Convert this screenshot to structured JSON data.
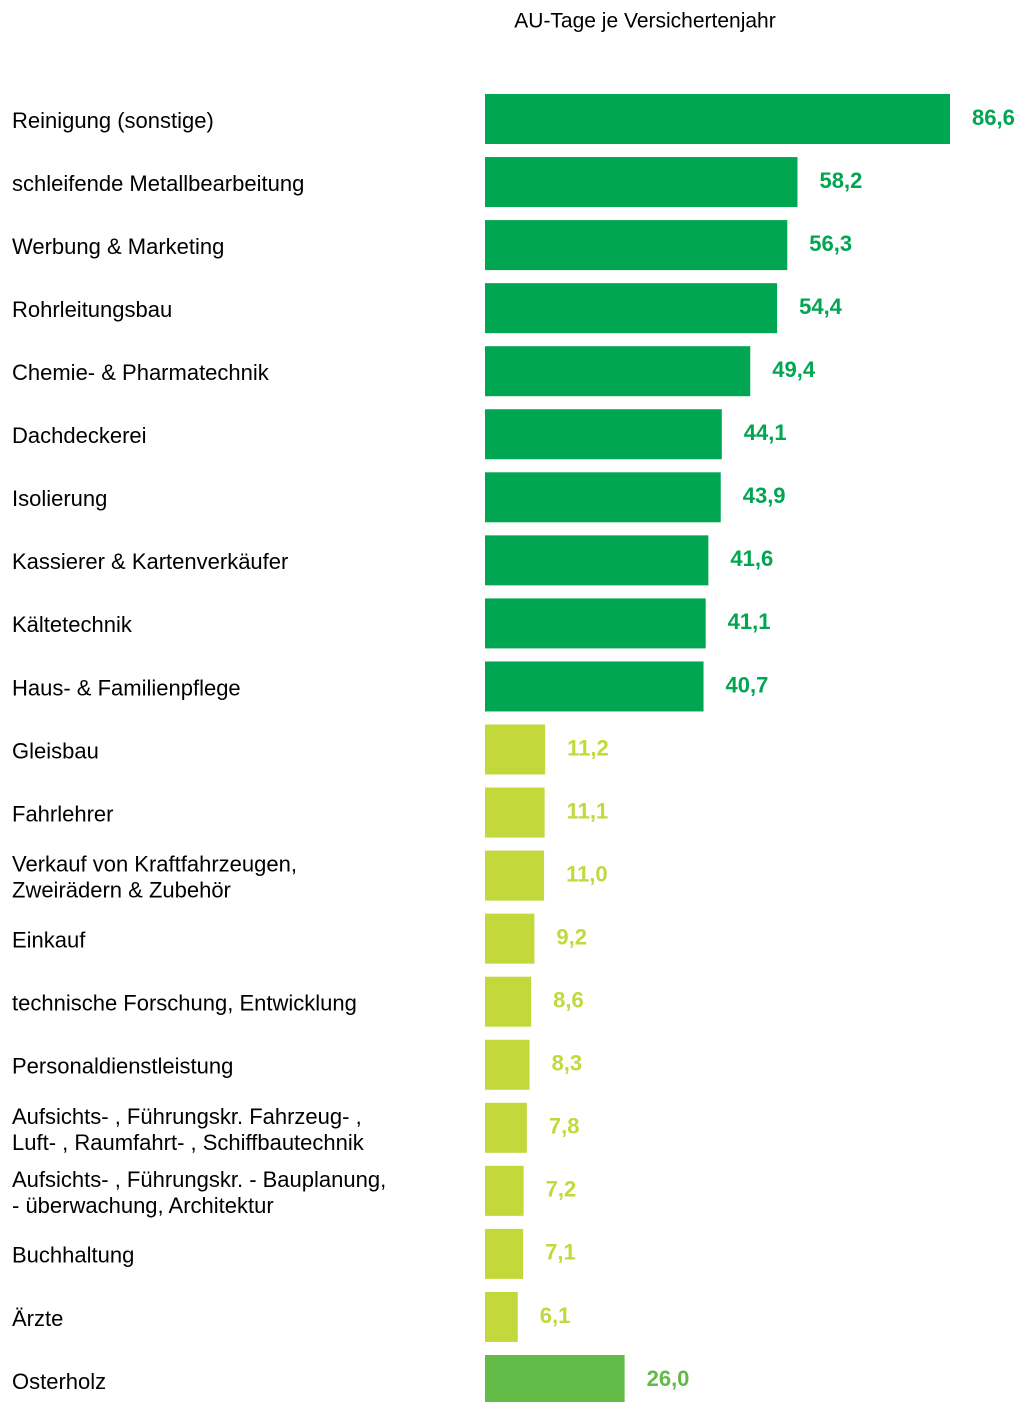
{
  "chart_data": {
    "type": "bar",
    "orientation": "horizontal",
    "title": "AU-Tage je Versichertenjahr",
    "categories": [
      "Reinigung (sonstige)",
      "schleifende Metallbearbeitung",
      "Werbung & Marketing",
      "Rohrleitungsbau",
      "Chemie- & Pharmatechnik",
      "Dachdeckerei",
      "Isolierung",
      "Kassierer & Kartenverkäufer",
      "Kältetechnik",
      "Haus- & Familienpflege",
      "Gleisbau",
      "Fahrlehrer",
      "Verkauf von Kraftfahrzeugen,\nZweirädern & Zubehör",
      "Einkauf",
      "technische Forschung, Entwicklung",
      "Personaldienstleistung",
      "Aufsichts- , Führungskr. Fahrzeug- ,\nLuft- , Raumfahrt- , Schiffbautechnik",
      "Aufsichts- , Führungskr. - Bauplanung,\n- überwachung, Architektur",
      "Buchhaltung",
      "Ärzte",
      "Osterholz"
    ],
    "values": [
      86.6,
      58.2,
      56.3,
      54.4,
      49.4,
      44.1,
      43.9,
      41.6,
      41.1,
      40.7,
      11.2,
      11.1,
      11.0,
      9.2,
      8.6,
      8.3,
      7.8,
      7.2,
      7.1,
      6.1,
      26.0
    ],
    "value_labels": [
      "86,6",
      "58,2",
      "56,3",
      "54,4",
      "49,4",
      "44,1",
      "43,9",
      "41,6",
      "41,1",
      "40,7",
      "11,2",
      "11,1",
      "11,0",
      "9,2",
      "8,6",
      "8,3",
      "7,8",
      "7,2",
      "7,1",
      "6,1",
      "26,0"
    ],
    "colors": [
      "#00a651",
      "#00a651",
      "#00a651",
      "#00a651",
      "#00a651",
      "#00a651",
      "#00a651",
      "#00a651",
      "#00a651",
      "#00a651",
      "#c2d83b",
      "#c2d83b",
      "#c2d83b",
      "#c2d83b",
      "#c2d83b",
      "#c2d83b",
      "#c2d83b",
      "#c2d83b",
      "#c2d83b",
      "#c2d83b",
      "#62bb46"
    ]
  }
}
